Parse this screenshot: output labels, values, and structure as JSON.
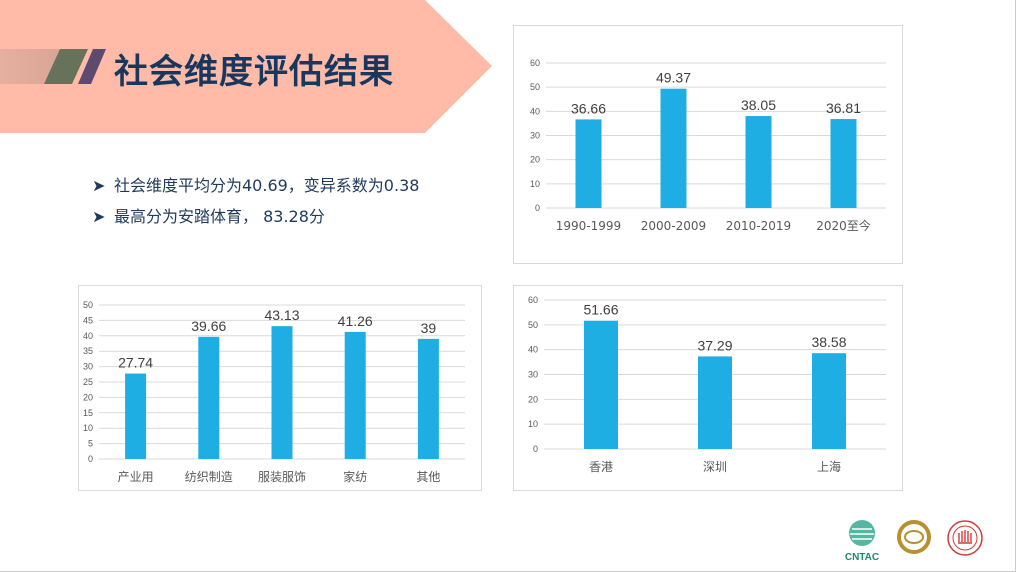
{
  "title": "社会维度评估结果",
  "bullets": [
    "社会维度平均分为40.69，变异系数为0.38",
    "最高分为安踏体育， 83.28分"
  ],
  "logos": [
    "CNTAC"
  ],
  "colors": {
    "bar": "#1FAEE3",
    "banner": "#FFBBA8",
    "title": "#17375E",
    "axis_text": "#595959",
    "label_text": "#404040"
  },
  "chart_data": [
    {
      "type": "bar",
      "categories": [
        "1990-1999",
        "2000-2009",
        "2010-2019",
        "2020至今"
      ],
      "values": [
        36.66,
        49.37,
        38.05,
        36.81
      ],
      "data_labels": [
        "36.66",
        "49.37",
        "38.05",
        "36.81"
      ],
      "ylim": [
        0,
        60
      ],
      "yticks": [
        "0",
        "10",
        "20",
        "30",
        "40",
        "50",
        "60"
      ],
      "grid": true
    },
    {
      "type": "bar",
      "categories": [
        "产业用",
        "纺织制造",
        "服装服饰",
        "家纺",
        "其他"
      ],
      "values": [
        27.74,
        39.66,
        43.13,
        41.26,
        39
      ],
      "data_labels": [
        "27.74",
        "39.66",
        "43.13",
        "41.26",
        "39"
      ],
      "ylim": [
        0,
        50
      ],
      "yticks": [
        "0",
        "5",
        "10",
        "15",
        "20",
        "25",
        "30",
        "35",
        "40",
        "45",
        "50"
      ],
      "grid": true
    },
    {
      "type": "bar",
      "categories": [
        "香港",
        "深圳",
        "上海"
      ],
      "values": [
        51.66,
        37.29,
        38.58
      ],
      "data_labels": [
        "51.66",
        "37.29",
        "38.58"
      ],
      "ylim": [
        0,
        60
      ],
      "yticks": [
        "0",
        "10",
        "20",
        "30",
        "40",
        "50",
        "60"
      ],
      "grid": true
    }
  ]
}
